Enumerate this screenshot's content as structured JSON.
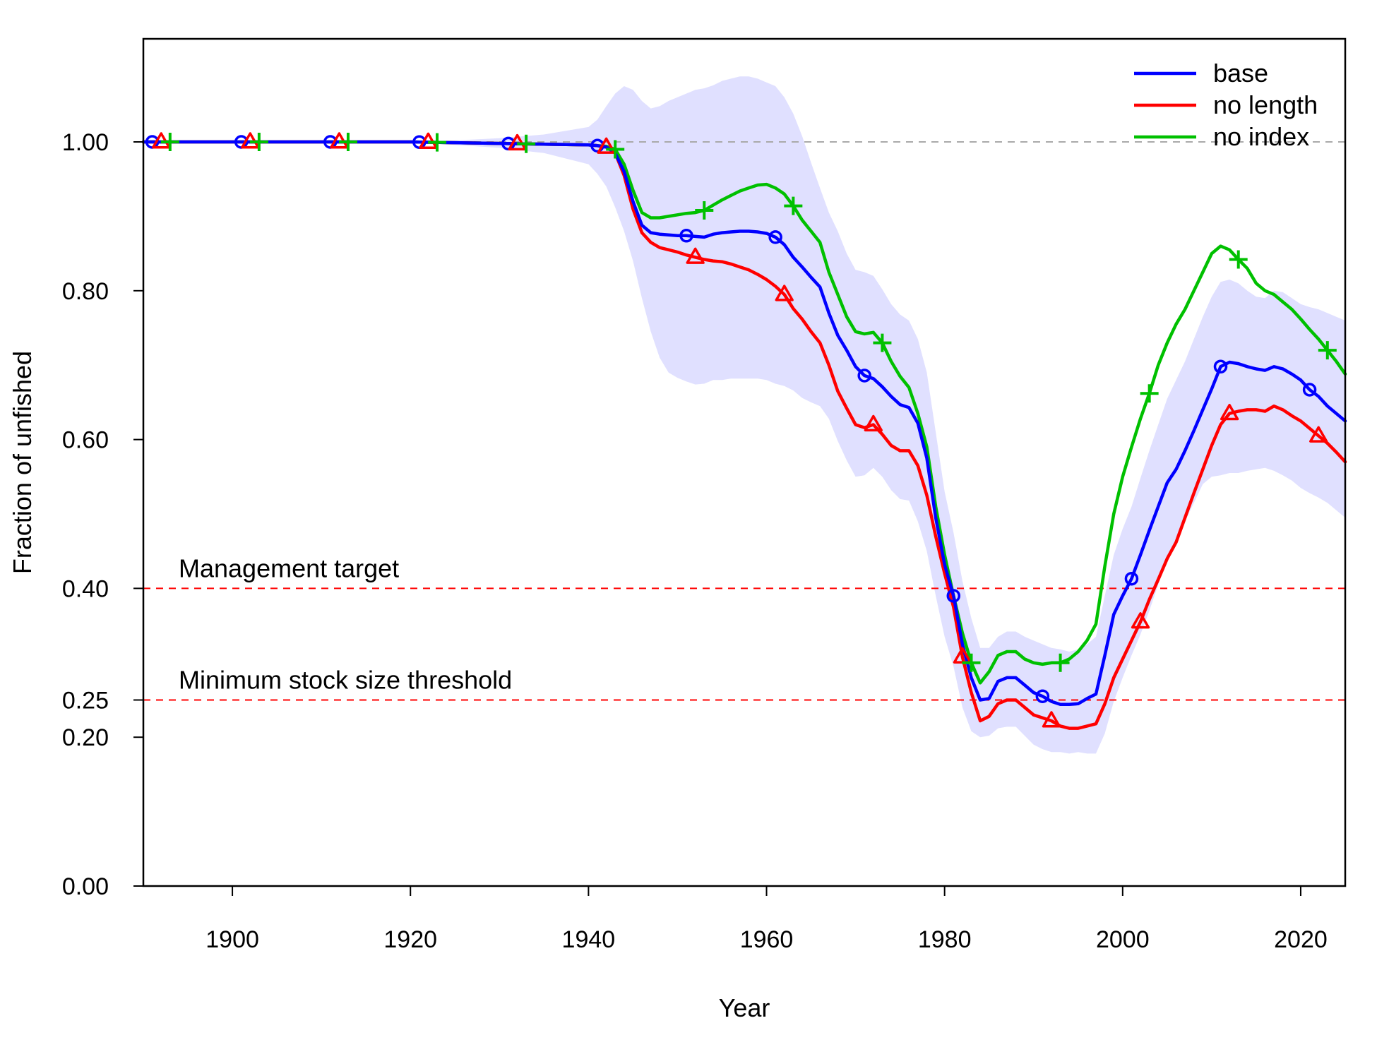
{
  "chart_data": {
    "type": "line",
    "title": "",
    "xlabel": "Year",
    "ylabel": "Fraction of unfished",
    "xlim": [
      1890,
      2025
    ],
    "ylim": [
      0,
      1.12
    ],
    "x_ticks": [
      1900,
      1920,
      1940,
      1960,
      1980,
      2000,
      2020
    ],
    "x_tick_labels": [
      "1900",
      "1920",
      "1940",
      "1960",
      "1980",
      "2000",
      "2020"
    ],
    "y_ticks": [
      0,
      0.2,
      0.25,
      0.4,
      0.6,
      0.8,
      1.0
    ],
    "y_tick_labels": [
      "0.00",
      "0.20",
      "0.25",
      "0.40",
      "0.60",
      "0.80",
      "1.00"
    ],
    "grid": false,
    "legend_position": "top-right",
    "reference_lines": [
      {
        "y": 1.0,
        "label": "",
        "color": "#aaaaaa",
        "style": "dashed"
      },
      {
        "y": 0.4,
        "label": "Management target",
        "color": "#ff0000",
        "style": "dashed"
      },
      {
        "y": 0.25,
        "label": "Minimum stock size threshold",
        "color": "#ff0000",
        "style": "dashed"
      }
    ],
    "x": [
      1890,
      1895,
      1900,
      1905,
      1910,
      1915,
      1920,
      1925,
      1930,
      1935,
      1940,
      1941,
      1942,
      1943,
      1944,
      1945,
      1946,
      1947,
      1948,
      1949,
      1950,
      1951,
      1952,
      1953,
      1954,
      1955,
      1956,
      1957,
      1958,
      1959,
      1960,
      1961,
      1962,
      1963,
      1964,
      1965,
      1966,
      1967,
      1968,
      1969,
      1970,
      1971,
      1972,
      1973,
      1974,
      1975,
      1976,
      1977,
      1978,
      1979,
      1980,
      1981,
      1982,
      1983,
      1984,
      1985,
      1986,
      1987,
      1988,
      1989,
      1990,
      1991,
      1992,
      1993,
      1994,
      1995,
      1996,
      1997,
      1998,
      1999,
      2000,
      2001,
      2002,
      2003,
      2004,
      2005,
      2006,
      2007,
      2008,
      2009,
      2010,
      2011,
      2012,
      2013,
      2014,
      2015,
      2016,
      2017,
      2018,
      2019,
      2020,
      2021,
      2022,
      2023,
      2024,
      2025
    ],
    "series": [
      {
        "name": "base",
        "color": "#0000ff",
        "marker": "circle",
        "marker_years": [
          1891,
          1901,
          1911,
          1921,
          1931,
          1941,
          1951,
          1961,
          1971,
          1981,
          1991,
          2001,
          2011,
          2021
        ],
        "values": [
          1.0,
          1.0,
          1.0,
          1.0,
          1.0,
          1.0,
          1.0,
          0.999,
          0.998,
          0.997,
          0.996,
          0.995,
          0.993,
          0.985,
          0.96,
          0.92,
          0.888,
          0.878,
          0.876,
          0.875,
          0.874,
          0.874,
          0.873,
          0.872,
          0.876,
          0.878,
          0.879,
          0.88,
          0.88,
          0.879,
          0.877,
          0.872,
          0.862,
          0.845,
          0.832,
          0.818,
          0.805,
          0.77,
          0.74,
          0.72,
          0.698,
          0.686,
          0.682,
          0.671,
          0.658,
          0.647,
          0.643,
          0.622,
          0.575,
          0.495,
          0.432,
          0.39,
          0.325,
          0.28,
          0.25,
          0.252,
          0.275,
          0.28,
          0.28,
          0.27,
          0.26,
          0.255,
          0.248,
          0.244,
          0.244,
          0.245,
          0.252,
          0.258,
          0.31,
          0.365,
          0.39,
          0.413,
          0.445,
          0.478,
          0.51,
          0.542,
          0.56,
          0.585,
          0.612,
          0.64,
          0.668,
          0.698,
          0.704,
          0.702,
          0.698,
          0.695,
          0.693,
          0.698,
          0.695,
          0.688,
          0.68,
          0.667,
          0.658,
          0.645,
          0.635,
          0.625
        ]
      },
      {
        "name": "no length",
        "color": "#ff0000",
        "marker": "triangle",
        "marker_years": [
          1892,
          1902,
          1912,
          1922,
          1932,
          1942,
          1952,
          1962,
          1972,
          1982,
          1992,
          2002,
          2012,
          2022
        ],
        "values": [
          1.0,
          1.0,
          1.0,
          1.0,
          1.0,
          1.0,
          1.0,
          0.999,
          0.998,
          0.997,
          0.996,
          0.995,
          0.993,
          0.985,
          0.955,
          0.91,
          0.878,
          0.865,
          0.858,
          0.855,
          0.852,
          0.848,
          0.845,
          0.842,
          0.84,
          0.839,
          0.836,
          0.832,
          0.828,
          0.822,
          0.815,
          0.806,
          0.795,
          0.776,
          0.762,
          0.745,
          0.73,
          0.7,
          0.665,
          0.642,
          0.62,
          0.616,
          0.62,
          0.607,
          0.592,
          0.585,
          0.585,
          0.565,
          0.525,
          0.47,
          0.42,
          0.375,
          0.308,
          0.26,
          0.222,
          0.228,
          0.245,
          0.25,
          0.25,
          0.24,
          0.23,
          0.226,
          0.222,
          0.215,
          0.212,
          0.212,
          0.215,
          0.218,
          0.245,
          0.28,
          0.305,
          0.33,
          0.355,
          0.385,
          0.412,
          0.44,
          0.462,
          0.495,
          0.528,
          0.56,
          0.592,
          0.62,
          0.635,
          0.638,
          0.64,
          0.64,
          0.638,
          0.645,
          0.64,
          0.632,
          0.625,
          0.615,
          0.605,
          0.595,
          0.583,
          0.57
        ]
      },
      {
        "name": "no index",
        "color": "#00c000",
        "marker": "plus",
        "marker_years": [
          1893,
          1903,
          1913,
          1923,
          1933,
          1943,
          1953,
          1963,
          1973,
          1983,
          1993,
          2003,
          2013,
          2023
        ],
        "values": [
          1.0,
          1.0,
          1.0,
          1.0,
          1.0,
          1.0,
          1.0,
          0.999,
          0.998,
          0.997,
          0.996,
          0.995,
          0.994,
          0.99,
          0.97,
          0.935,
          0.905,
          0.898,
          0.898,
          0.9,
          0.902,
          0.904,
          0.905,
          0.908,
          0.915,
          0.922,
          0.928,
          0.934,
          0.938,
          0.942,
          0.943,
          0.938,
          0.93,
          0.914,
          0.895,
          0.88,
          0.865,
          0.825,
          0.795,
          0.765,
          0.745,
          0.742,
          0.744,
          0.73,
          0.705,
          0.685,
          0.67,
          0.635,
          0.59,
          0.51,
          0.445,
          0.39,
          0.34,
          0.3,
          0.273,
          0.288,
          0.31,
          0.315,
          0.315,
          0.305,
          0.3,
          0.298,
          0.3,
          0.3,
          0.305,
          0.315,
          0.33,
          0.352,
          0.43,
          0.5,
          0.55,
          0.59,
          0.628,
          0.662,
          0.7,
          0.73,
          0.755,
          0.775,
          0.8,
          0.825,
          0.85,
          0.86,
          0.855,
          0.842,
          0.83,
          0.81,
          0.8,
          0.795,
          0.785,
          0.775,
          0.762,
          0.748,
          0.735,
          0.72,
          0.705,
          0.688
        ]
      }
    ],
    "uncertainty_band": {
      "series": "base",
      "color": "#e0e0ff",
      "lower": [
        1.0,
        1.0,
        1.0,
        1.0,
        1.0,
        1.0,
        1.0,
        0.996,
        0.992,
        0.985,
        0.97,
        0.957,
        0.94,
        0.912,
        0.88,
        0.84,
        0.79,
        0.745,
        0.71,
        0.69,
        0.683,
        0.678,
        0.674,
        0.675,
        0.68,
        0.68,
        0.682,
        0.682,
        0.682,
        0.682,
        0.68,
        0.675,
        0.672,
        0.666,
        0.656,
        0.65,
        0.645,
        0.628,
        0.598,
        0.572,
        0.55,
        0.552,
        0.562,
        0.55,
        0.532,
        0.52,
        0.518,
        0.49,
        0.45,
        0.39,
        0.335,
        0.295,
        0.24,
        0.208,
        0.2,
        0.202,
        0.212,
        0.214,
        0.214,
        0.202,
        0.19,
        0.184,
        0.18,
        0.18,
        0.178,
        0.18,
        0.178,
        0.178,
        0.205,
        0.248,
        0.28,
        0.31,
        0.338,
        0.37,
        0.405,
        0.44,
        0.46,
        0.49,
        0.515,
        0.54,
        0.55,
        0.552,
        0.555,
        0.555,
        0.558,
        0.56,
        0.562,
        0.558,
        0.552,
        0.545,
        0.535,
        0.528,
        0.522,
        0.515,
        0.505,
        0.495
      ],
      "upper": [
        1.0,
        1.0,
        1.0,
        1.0,
        1.0,
        1.0,
        1.0,
        1.002,
        1.005,
        1.01,
        1.02,
        1.03,
        1.048,
        1.065,
        1.075,
        1.07,
        1.055,
        1.045,
        1.048,
        1.055,
        1.06,
        1.065,
        1.07,
        1.072,
        1.076,
        1.082,
        1.085,
        1.088,
        1.088,
        1.085,
        1.08,
        1.075,
        1.06,
        1.038,
        1.008,
        0.972,
        0.938,
        0.905,
        0.88,
        0.85,
        0.828,
        0.825,
        0.82,
        0.802,
        0.782,
        0.768,
        0.76,
        0.735,
        0.69,
        0.61,
        0.53,
        0.475,
        0.41,
        0.36,
        0.32,
        0.32,
        0.335,
        0.342,
        0.342,
        0.335,
        0.33,
        0.325,
        0.32,
        0.318,
        0.315,
        0.318,
        0.325,
        0.335,
        0.39,
        0.445,
        0.48,
        0.51,
        0.548,
        0.585,
        0.62,
        0.655,
        0.68,
        0.705,
        0.735,
        0.765,
        0.792,
        0.812,
        0.815,
        0.81,
        0.8,
        0.792,
        0.79,
        0.8,
        0.798,
        0.79,
        0.782,
        0.778,
        0.775,
        0.77,
        0.765,
        0.76
      ]
    }
  }
}
